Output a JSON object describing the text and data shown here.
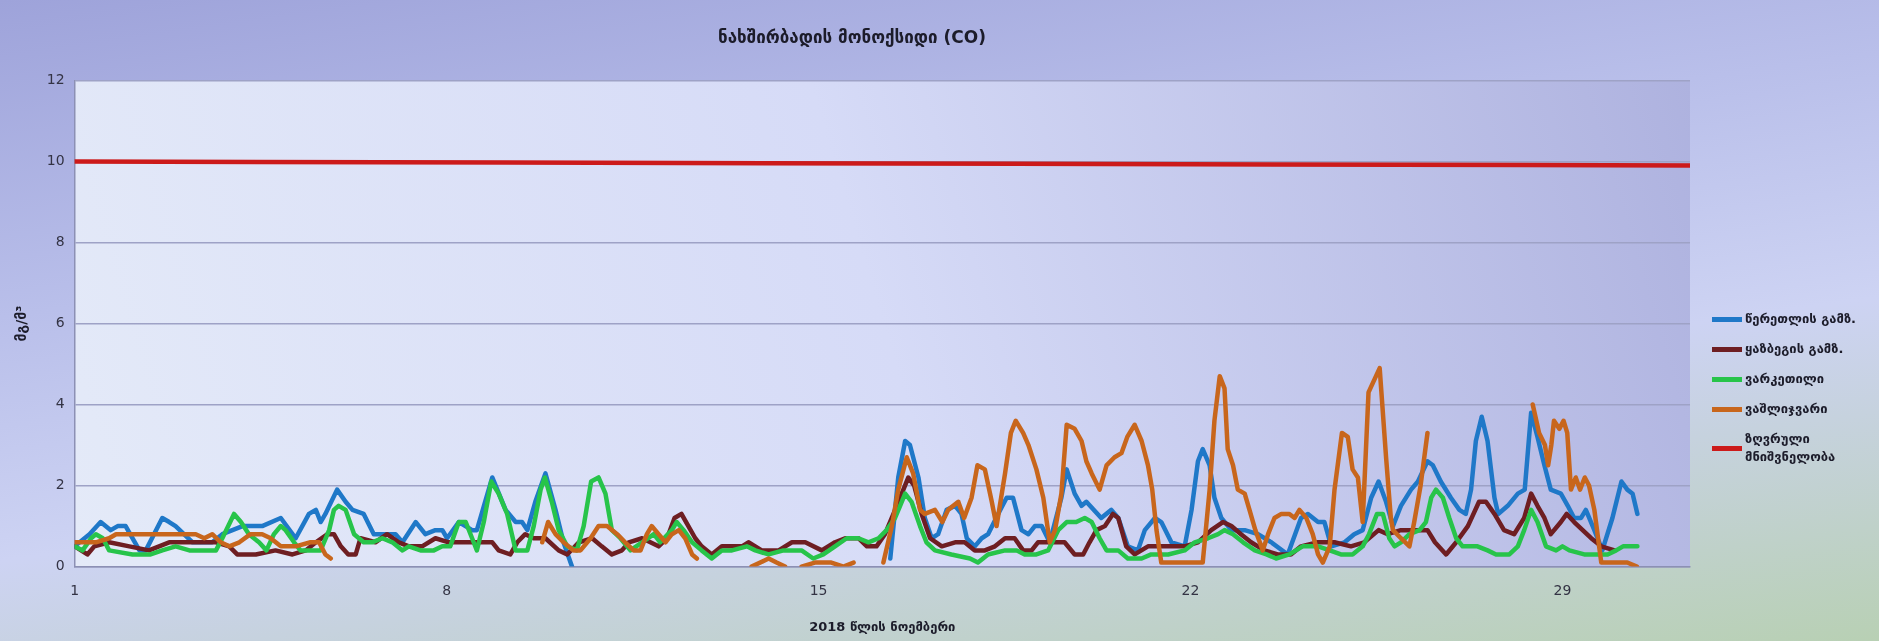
{
  "chart_data": {
    "type": "line",
    "title": "ნახშირბადის მონოქსიდი (CO)",
    "xlabel": "2018 წლის ნოემბერი",
    "ylabel": "მგ/მ³",
    "xlim": [
      1,
      31.4
    ],
    "xticks": [
      1,
      8,
      15,
      22,
      29
    ],
    "ylim": [
      0,
      12
    ],
    "yticks": [
      0,
      2,
      4,
      6,
      8,
      10,
      12
    ],
    "grid": "y",
    "legend": "right",
    "series": [
      {
        "name": "წერეთლის გამზ.",
        "color": "#1f78c8",
        "x": [
          1.0,
          1.28,
          1.49,
          1.68,
          1.81,
          1.96,
          2.22,
          2.34,
          2.65,
          2.78,
          2.9,
          3.22,
          3.59,
          3.78,
          4.16,
          4.53,
          4.88,
          5.16,
          5.41,
          5.54,
          5.63,
          5.72,
          5.94,
          6.1,
          6.23,
          6.44,
          6.63,
          7.04,
          7.17,
          7.42,
          7.6,
          7.79,
          7.92,
          8.01,
          8.23,
          8.48,
          8.57,
          8.86,
          9.11,
          9.3,
          9.42,
          9.52,
          9.67,
          9.86,
          10.05,
          10.2,
          10.36,
          13.0,
          16.35,
          16.5,
          16.63,
          16.72,
          16.88,
          17.0,
          17.13,
          17.25,
          17.41,
          17.57,
          17.69,
          17.79,
          17.94,
          18.07,
          18.19,
          18.38,
          18.54,
          18.66,
          18.82,
          18.95,
          19.07,
          19.2,
          19.35,
          19.57,
          19.67,
          19.82,
          19.95,
          20.04,
          20.32,
          20.51,
          20.64,
          20.82,
          21.01,
          21.14,
          21.33,
          21.45,
          21.64,
          21.89,
          22.02,
          22.14,
          22.23,
          22.36,
          22.45,
          22.58,
          22.77,
          23.02,
          23.27,
          23.52,
          23.83,
          24.08,
          24.21,
          24.4,
          24.52,
          24.65,
          24.9,
          25.08,
          25.24,
          25.4,
          25.54,
          25.68,
          25.81,
          25.96,
          26.15,
          26.28,
          26.46,
          26.56,
          26.71,
          26.9,
          27.06,
          27.18,
          27.28,
          27.37,
          27.48,
          27.59,
          27.72,
          27.79,
          27.97,
          28.16,
          28.29,
          28.41,
          28.53,
          28.66,
          28.78,
          28.97,
          29.1,
          29.22,
          29.35,
          29.44,
          29.6,
          29.75,
          29.94,
          30.11,
          30.22,
          30.32,
          30.41
        ],
        "values": [
          0.5,
          0.8,
          1.1,
          0.9,
          1.0,
          1.0,
          0.4,
          0.4,
          1.2,
          1.1,
          1.0,
          0.6,
          0.6,
          0.8,
          1.0,
          1.0,
          1.2,
          0.7,
          1.3,
          1.4,
          1.1,
          1.3,
          1.9,
          1.6,
          1.4,
          1.3,
          0.8,
          0.8,
          0.6,
          1.1,
          0.8,
          0.9,
          0.9,
          0.7,
          1.1,
          0.9,
          0.9,
          2.2,
          1.4,
          1.1,
          1.1,
          0.9,
          1.6,
          2.3,
          1.4,
          0.6,
          0.0,
          null,
          0.2,
          2.2,
          3.1,
          3.0,
          2.2,
          1.2,
          0.7,
          0.8,
          1.4,
          1.5,
          1.3,
          0.7,
          0.5,
          0.7,
          0.8,
          1.3,
          1.7,
          1.7,
          0.9,
          0.8,
          1.0,
          1.0,
          0.6,
          1.7,
          2.4,
          1.8,
          1.5,
          1.6,
          1.2,
          1.4,
          1.2,
          0.5,
          0.4,
          0.9,
          1.2,
          1.1,
          0.6,
          0.5,
          1.4,
          2.6,
          2.9,
          2.5,
          1.7,
          1.2,
          0.9,
          0.9,
          0.8,
          0.6,
          0.3,
          1.2,
          1.3,
          1.1,
          1.1,
          0.5,
          0.6,
          0.8,
          0.9,
          1.7,
          2.1,
          1.6,
          1.0,
          1.5,
          1.9,
          2.1,
          2.6,
          2.5,
          2.1,
          1.7,
          1.4,
          1.3,
          1.9,
          3.1,
          3.7,
          3.1,
          1.7,
          1.3,
          1.5,
          1.8,
          1.9,
          3.8,
          3.2,
          2.5,
          1.9,
          1.8,
          1.5,
          1.2,
          1.2,
          1.4,
          0.9,
          0.4,
          1.2,
          2.1,
          1.9,
          1.8,
          1.3
        ]
      },
      {
        "name": "ყაზბეგის გამზ.",
        "color": "#6e1e22",
        "x": [
          1.0,
          1.24,
          1.37,
          1.65,
          2.03,
          2.4,
          2.78,
          2.97,
          3.28,
          3.66,
          3.91,
          4.06,
          4.41,
          4.78,
          5.1,
          5.35,
          5.54,
          5.76,
          5.88,
          6.01,
          6.15,
          6.29,
          6.38,
          6.66,
          6.88,
          7.1,
          7.29,
          7.54,
          7.79,
          8.04,
          8.42,
          8.86,
          8.98,
          9.2,
          9.33,
          9.48,
          9.64,
          9.86,
          10.11,
          10.27,
          10.49,
          10.74,
          10.92,
          11.11,
          11.3,
          11.43,
          11.68,
          11.99,
          12.15,
          12.29,
          12.42,
          12.55,
          12.68,
          12.8,
          12.99,
          13.18,
          13.37,
          13.56,
          13.68,
          13.93,
          14.25,
          14.5,
          14.75,
          15.06,
          15.31,
          15.5,
          15.75,
          15.91,
          16.09,
          16.25,
          16.41,
          16.69,
          16.8,
          16.94,
          17.1,
          17.32,
          17.57,
          17.75,
          17.94,
          18.13,
          18.32,
          18.51,
          18.69,
          18.85,
          19.01,
          19.13,
          19.45,
          19.63,
          19.82,
          19.98,
          20.1,
          20.23,
          20.39,
          20.54,
          20.64,
          20.79,
          20.95,
          21.2,
          21.45,
          21.89,
          22.14,
          22.39,
          22.61,
          22.77,
          22.95,
          23.14,
          23.39,
          23.64,
          23.89,
          24.08,
          24.4,
          24.71,
          25.02,
          25.27,
          25.54,
          25.71,
          25.96,
          26.46,
          26.6,
          26.81,
          27.0,
          27.22,
          27.43,
          27.56,
          27.72,
          27.9,
          28.09,
          28.28,
          28.41,
          28.53,
          28.66,
          28.78,
          28.97,
          29.08,
          29.22,
          29.38,
          29.54,
          29.73,
          29.98
        ],
        "values": [
          0.5,
          0.3,
          0.5,
          0.6,
          0.5,
          0.4,
          0.6,
          0.6,
          0.6,
          0.6,
          0.5,
          0.3,
          0.3,
          0.4,
          0.3,
          0.4,
          0.6,
          0.8,
          0.8,
          0.5,
          0.3,
          0.3,
          0.7,
          0.6,
          0.8,
          0.6,
          0.5,
          0.5,
          0.7,
          0.6,
          0.6,
          0.6,
          0.4,
          0.3,
          0.6,
          0.8,
          0.7,
          0.7,
          0.4,
          0.3,
          0.6,
          0.7,
          0.5,
          0.3,
          0.4,
          0.6,
          0.7,
          0.5,
          0.7,
          1.2,
          1.3,
          1.0,
          0.7,
          0.5,
          0.3,
          0.5,
          0.5,
          0.5,
          0.6,
          0.4,
          0.4,
          0.6,
          0.6,
          0.4,
          0.6,
          0.7,
          0.7,
          0.5,
          0.5,
          0.8,
          1.3,
          2.2,
          2.0,
          1.3,
          0.7,
          0.5,
          0.6,
          0.6,
          0.4,
          0.4,
          0.5,
          0.7,
          0.7,
          0.4,
          0.4,
          0.6,
          0.6,
          0.6,
          0.3,
          0.3,
          0.6,
          0.9,
          1.0,
          1.3,
          1.2,
          0.5,
          0.3,
          0.5,
          0.5,
          0.5,
          0.6,
          0.9,
          1.1,
          1.0,
          0.8,
          0.6,
          0.4,
          0.3,
          0.3,
          0.5,
          0.6,
          0.6,
          0.5,
          0.6,
          0.9,
          0.8,
          0.9,
          0.9,
          0.6,
          0.3,
          0.6,
          1.0,
          1.6,
          1.6,
          1.3,
          0.9,
          0.8,
          1.2,
          1.8,
          1.5,
          1.2,
          0.8,
          1.1,
          1.3,
          1.1,
          0.9,
          0.7,
          0.5,
          0.4
        ]
      },
      {
        "name": "ვარკეთილი",
        "color": "#27c44a",
        "x": [
          1.0,
          1.15,
          1.31,
          1.4,
          1.53,
          1.65,
          2.09,
          2.22,
          2.43,
          2.65,
          2.9,
          3.16,
          3.66,
          3.78,
          4.0,
          4.13,
          4.28,
          4.47,
          4.61,
          4.75,
          4.88,
          4.97,
          5.13,
          5.25,
          5.63,
          5.79,
          5.88,
          5.97,
          6.1,
          6.26,
          6.44,
          6.6,
          6.79,
          6.98,
          7.17,
          7.29,
          7.51,
          7.76,
          7.92,
          8.07,
          8.23,
          8.36,
          8.51,
          8.57,
          8.7,
          8.84,
          8.98,
          9.14,
          9.3,
          9.52,
          9.64,
          9.77,
          9.85,
          9.98,
          10.11,
          10.27,
          10.45,
          10.58,
          10.72,
          10.86,
          10.99,
          11.11,
          11.27,
          11.46,
          11.68,
          11.9,
          12.02,
          12.24,
          12.33,
          12.46,
          12.62,
          12.8,
          12.99,
          13.18,
          13.37,
          13.65,
          13.81,
          14.06,
          14.34,
          14.68,
          14.9,
          15.09,
          15.31,
          15.53,
          15.75,
          15.94,
          16.13,
          16.28,
          16.44,
          16.63,
          16.75,
          16.91,
          17.03,
          17.19,
          17.5,
          17.85,
          18.0,
          18.19,
          18.51,
          18.73,
          18.88,
          19.1,
          19.32,
          19.51,
          19.67,
          19.85,
          20.01,
          20.14,
          20.29,
          20.42,
          20.64,
          20.82,
          21.08,
          21.26,
          21.58,
          21.89,
          22.08,
          22.33,
          22.52,
          22.64,
          22.8,
          22.99,
          23.21,
          23.43,
          23.61,
          23.86,
          24.11,
          24.4,
          24.62,
          24.83,
          25.05,
          25.24,
          25.36,
          25.51,
          25.62,
          25.74,
          25.84,
          25.96,
          26.12,
          26.31,
          26.43,
          26.53,
          26.62,
          26.75,
          26.87,
          27.0,
          27.12,
          27.4,
          27.59,
          27.75,
          28.0,
          28.16,
          28.28,
          28.41,
          28.53,
          28.69,
          28.88,
          29.0,
          29.13,
          29.41,
          29.66,
          29.85,
          30.01,
          30.14,
          30.41
        ],
        "values": [
          0.5,
          0.4,
          0.7,
          0.8,
          0.7,
          0.4,
          0.3,
          0.3,
          0.3,
          0.4,
          0.5,
          0.4,
          0.4,
          0.7,
          1.3,
          1.1,
          0.8,
          0.6,
          0.4,
          0.8,
          1.0,
          0.9,
          0.6,
          0.4,
          0.4,
          0.9,
          1.4,
          1.5,
          1.4,
          0.8,
          0.6,
          0.6,
          0.7,
          0.6,
          0.4,
          0.5,
          0.4,
          0.4,
          0.5,
          0.5,
          1.1,
          1.1,
          0.6,
          0.4,
          1.1,
          2.1,
          1.8,
          1.3,
          0.4,
          0.4,
          1.0,
          1.9,
          2.2,
          1.6,
          0.9,
          0.5,
          0.4,
          1.0,
          2.1,
          2.2,
          1.8,
          0.9,
          0.7,
          0.4,
          0.6,
          0.8,
          0.6,
          0.9,
          1.1,
          0.9,
          0.6,
          0.4,
          0.2,
          0.4,
          0.4,
          0.5,
          0.4,
          0.3,
          0.4,
          0.4,
          0.2,
          0.3,
          0.5,
          0.7,
          0.7,
          0.6,
          0.7,
          0.9,
          1.2,
          1.8,
          1.6,
          1.0,
          0.6,
          0.4,
          0.3,
          0.2,
          0.1,
          0.3,
          0.4,
          0.4,
          0.3,
          0.3,
          0.4,
          0.9,
          1.1,
          1.1,
          1.2,
          1.1,
          0.7,
          0.4,
          0.4,
          0.2,
          0.2,
          0.3,
          0.3,
          0.4,
          0.6,
          0.7,
          0.8,
          0.9,
          0.8,
          0.6,
          0.4,
          0.3,
          0.2,
          0.3,
          0.5,
          0.5,
          0.4,
          0.3,
          0.3,
          0.5,
          0.8,
          1.3,
          1.3,
          0.7,
          0.5,
          0.6,
          0.8,
          0.9,
          1.1,
          1.7,
          1.9,
          1.7,
          1.2,
          0.7,
          0.5,
          0.5,
          0.4,
          0.3,
          0.3,
          0.5,
          0.9,
          1.4,
          1.1,
          0.5,
          0.4,
          0.5,
          0.4,
          0.3,
          0.3,
          0.3,
          0.4,
          0.5,
          0.5
        ]
      },
      {
        "name": "ვაშლიჯვარი",
        "color": "#c8661c",
        "x": [
          1.0,
          1.4,
          1.65,
          1.78,
          3.28,
          3.44,
          3.59,
          3.75,
          3.91,
          4.1,
          4.31,
          4.53,
          4.69,
          4.88,
          5.16,
          5.44,
          5.6,
          5.72,
          5.82,
          7.5,
          9.8,
          9.91,
          10.05,
          10.2,
          10.39,
          10.52,
          10.71,
          10.86,
          11.02,
          11.21,
          11.36,
          11.52,
          11.65,
          11.77,
          11.86,
          11.99,
          12.12,
          12.24,
          12.37,
          12.49,
          12.62,
          12.71,
          13.2,
          13.74,
          14.06,
          14.21,
          14.37,
          14.5,
          14.68,
          14.93,
          15.24,
          15.47,
          15.66,
          16.0,
          16.22,
          16.38,
          16.5,
          16.66,
          16.78,
          16.91,
          17.0,
          17.19,
          17.33,
          17.44,
          17.63,
          17.74,
          17.88,
          17.99,
          18.13,
          18.26,
          18.35,
          18.51,
          18.62,
          18.71,
          18.85,
          18.95,
          19.1,
          19.23,
          19.35,
          19.45,
          19.57,
          19.67,
          19.82,
          19.95,
          20.04,
          20.14,
          20.29,
          20.42,
          20.57,
          20.7,
          20.81,
          20.95,
          21.08,
          21.2,
          21.28,
          21.36,
          21.45,
          21.89,
          22.23,
          22.36,
          22.45,
          22.55,
          22.64,
          22.7,
          22.8,
          22.89,
          23.02,
          23.11,
          23.22,
          23.36,
          23.46,
          23.58,
          23.71,
          23.86,
          23.96,
          24.05,
          24.18,
          24.3,
          24.4,
          24.49,
          24.62,
          24.71,
          24.85,
          24.96,
          25.05,
          25.15,
          25.24,
          25.35,
          25.56,
          25.68,
          25.77,
          25.81,
          25.96,
          26.12,
          26.21,
          26.33,
          26.46,
          27.5,
          28.44,
          28.56,
          28.67,
          28.73,
          28.79,
          28.84,
          28.94,
          29.02,
          29.09,
          29.16,
          29.25,
          29.33,
          29.42,
          29.5,
          29.6,
          29.69,
          29.73,
          29.97,
          30.22,
          30.4
        ],
        "values": [
          0.6,
          0.6,
          0.7,
          0.8,
          0.8,
          0.7,
          0.8,
          0.6,
          0.5,
          0.6,
          0.8,
          0.8,
          0.7,
          0.5,
          0.5,
          0.6,
          0.6,
          0.3,
          0.2,
          null,
          0.6,
          1.1,
          0.8,
          0.6,
          0.4,
          0.4,
          0.7,
          1.0,
          1.0,
          0.8,
          0.6,
          0.4,
          0.4,
          0.8,
          1.0,
          0.8,
          0.6,
          0.8,
          0.9,
          0.7,
          0.3,
          0.2,
          null,
          0.0,
          0.2,
          0.1,
          0.0,
          null,
          0.0,
          0.1,
          0.1,
          0.0,
          0.1,
          null,
          0.1,
          1.0,
          1.9,
          2.7,
          2.3,
          1.4,
          1.3,
          1.4,
          1.1,
          1.4,
          1.6,
          1.2,
          1.7,
          2.5,
          2.4,
          1.6,
          1.0,
          2.3,
          3.3,
          3.6,
          3.3,
          3.0,
          2.4,
          1.7,
          0.6,
          0.9,
          1.8,
          3.5,
          3.4,
          3.1,
          2.6,
          2.3,
          1.9,
          2.5,
          2.7,
          2.8,
          3.2,
          3.5,
          3.1,
          2.5,
          1.9,
          0.9,
          0.1,
          0.1,
          0.1,
          1.9,
          3.6,
          4.7,
          4.4,
          2.9,
          2.5,
          1.9,
          1.8,
          1.4,
          0.9,
          0.4,
          0.8,
          1.2,
          1.3,
          1.3,
          1.2,
          1.4,
          1.2,
          0.8,
          0.3,
          0.1,
          0.5,
          1.9,
          3.3,
          3.2,
          2.4,
          2.2,
          1.1,
          4.3,
          4.9,
          2.7,
          1.2,
          0.9,
          0.7,
          0.5,
          1.1,
          2.0,
          3.3,
          null,
          4.0,
          3.3,
          3.0,
          2.5,
          3.0,
          3.6,
          3.4,
          3.6,
          3.3,
          1.9,
          2.2,
          1.9,
          2.2,
          2.0,
          1.4,
          0.5,
          0.1,
          0.1,
          0.1,
          0.0
        ]
      },
      {
        "name": "ზღვრული მნიშვნელობა",
        "color": "#cc1a1a",
        "x": [
          1,
          31.4
        ],
        "values": [
          10,
          9.9
        ]
      }
    ]
  }
}
